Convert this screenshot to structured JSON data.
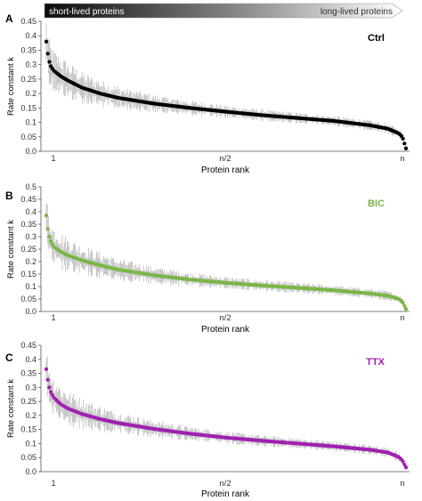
{
  "header": {
    "left_label": "short-lived proteins",
    "right_label": "long-lived proteins"
  },
  "colors": {
    "ctrl": "#000000",
    "bic": "#7ab648",
    "ttx": "#a020b0",
    "error": "#9a9a9a",
    "axis": "#555555"
  },
  "chart_data": [
    {
      "type": "scatter",
      "panel": "A",
      "title": "Ctrl",
      "xlabel": "Protein rank",
      "ylabel": "Rate constant k",
      "x_tick_labels": [
        "1",
        "n/2",
        "n"
      ],
      "y_ticks": [
        "0.0",
        "0.05",
        "0.1",
        "0.15",
        "0.2",
        "0.25",
        "0.3",
        "0.35",
        "0.4",
        "0.45"
      ],
      "ylim": [
        0,
        0.45
      ],
      "series": [
        {
          "rank_fraction": [
            0,
            0.005,
            0.01,
            0.02,
            0.04,
            0.06,
            0.1,
            0.15,
            0.2,
            0.3,
            0.4,
            0.5,
            0.6,
            0.7,
            0.8,
            0.9,
            0.95,
            0.98,
            0.99,
            1.0
          ],
          "k": [
            0.38,
            0.33,
            0.3,
            0.28,
            0.26,
            0.245,
            0.22,
            0.2,
            0.185,
            0.165,
            0.15,
            0.137,
            0.125,
            0.115,
            0.105,
            0.09,
            0.078,
            0.062,
            0.05,
            0.01
          ]
        }
      ]
    },
    {
      "type": "scatter",
      "panel": "B",
      "title": "BIC",
      "xlabel": "Protein rank",
      "ylabel": "Rate constant k",
      "x_tick_labels": [
        "1",
        "n/2",
        "n"
      ],
      "y_ticks": [
        "0.0",
        "0.05",
        "0.1",
        "0.15",
        "0.2",
        "0.25",
        "0.3",
        "0.35",
        "0.4",
        "0.45",
        "0.5"
      ],
      "ylim": [
        0,
        0.5
      ],
      "series": [
        {
          "rank_fraction": [
            0,
            0.005,
            0.01,
            0.02,
            0.04,
            0.06,
            0.1,
            0.15,
            0.2,
            0.3,
            0.4,
            0.5,
            0.6,
            0.7,
            0.8,
            0.9,
            0.95,
            0.98,
            0.99,
            1.0
          ],
          "k": [
            0.385,
            0.32,
            0.29,
            0.26,
            0.24,
            0.225,
            0.205,
            0.185,
            0.168,
            0.145,
            0.128,
            0.115,
            0.104,
            0.095,
            0.085,
            0.072,
            0.063,
            0.05,
            0.04,
            0.01
          ]
        }
      ]
    },
    {
      "type": "scatter",
      "panel": "C",
      "title": "TTX",
      "xlabel": "Protein rank",
      "ylabel": "Rate constant k",
      "x_tick_labels": [
        "1",
        "n/2",
        "n"
      ],
      "y_ticks": [
        "0.0",
        "0.05",
        "0.1",
        "0.15",
        "0.2",
        "0.25",
        "0.3",
        "0.35",
        "0.4",
        "0.45"
      ],
      "ylim": [
        0,
        0.45
      ],
      "series": [
        {
          "rank_fraction": [
            0,
            0.005,
            0.01,
            0.02,
            0.04,
            0.06,
            0.1,
            0.15,
            0.2,
            0.3,
            0.4,
            0.5,
            0.6,
            0.7,
            0.8,
            0.9,
            0.95,
            0.98,
            0.99,
            1.0
          ],
          "k": [
            0.365,
            0.32,
            0.29,
            0.265,
            0.24,
            0.225,
            0.205,
            0.187,
            0.173,
            0.152,
            0.135,
            0.121,
            0.11,
            0.1,
            0.09,
            0.078,
            0.068,
            0.052,
            0.04,
            0.015
          ]
        }
      ]
    }
  ]
}
